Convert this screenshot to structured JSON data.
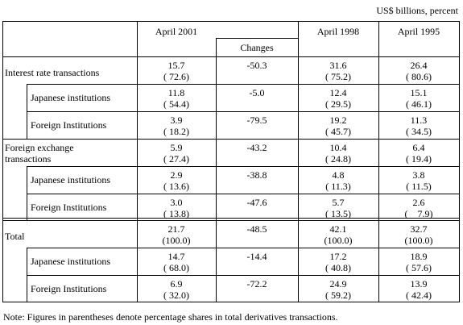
{
  "unit": "US$ billions, percent",
  "columns": {
    "april_2001": "April 2001",
    "changes": "Changes",
    "april_1998": "April 1998",
    "april_1995": "April 1995"
  },
  "sections": [
    {
      "row": {
        "label": "Interest rate transactions",
        "v2001": "15.7",
        "s2001": "( 72.6)",
        "change": "-50.3",
        "v1998": "31.6",
        "s1998": "( 75.2)",
        "v1995": "26.4",
        "s1995": "( 80.6)"
      },
      "subrows": [
        {
          "label": "Japanese institutions",
          "v2001": "11.8",
          "s2001": "( 54.4)",
          "change": "-5.0",
          "v1998": "12.4",
          "s1998": "( 29.5)",
          "v1995": "15.1",
          "s1995": "( 46.1)"
        },
        {
          "label": "Foreign Institutions",
          "v2001": "3.9",
          "s2001": "( 18.2)",
          "change": "-79.5",
          "v1998": "19.2",
          "s1998": "( 45.7)",
          "v1995": "11.3",
          "s1995": "( 34.5)"
        }
      ]
    },
    {
      "row": {
        "label": "Foreign exchange transactions",
        "v2001": "5.9",
        "s2001": "( 27.4)",
        "change": "-43.2",
        "v1998": "10.4",
        "s1998": "( 24.8)",
        "v1995": "6.4",
        "s1995": "( 19.4)"
      },
      "subrows": [
        {
          "label": "Japanese institutions",
          "v2001": "2.9",
          "s2001": "( 13.6)",
          "change": "-38.8",
          "v1998": "4.8",
          "s1998": "( 11.3)",
          "v1995": "3.8",
          "s1995": "( 11.5)"
        },
        {
          "label": "Foreign Institutions",
          "v2001": "3.0",
          "s2001": "( 13.8)",
          "change": "-47.6",
          "v1998": "5.7",
          "s1998": "( 13.5)",
          "v1995": "2.6",
          "s1995": "(    7.9)"
        }
      ]
    },
    {
      "row": {
        "label": "Total",
        "v2001": "21.7",
        "s2001": "(100.0)",
        "change": "-48.5",
        "v1998": "42.1",
        "s1998": "(100.0)",
        "v1995": "32.7",
        "s1995": "(100.0)"
      },
      "subrows": [
        {
          "label": "Japanese institutions",
          "v2001": "14.7",
          "s2001": "( 68.0)",
          "change": "-14.4",
          "v1998": "17.2",
          "s1998": "( 40.8)",
          "v1995": "18.9",
          "s1995": "( 57.6)"
        },
        {
          "label": "Foreign Institutions",
          "v2001": "6.9",
          "s2001": "( 32.0)",
          "change": "-72.2",
          "v1998": "24.9",
          "s1998": "( 59.2)",
          "v1995": "13.9",
          "s1995": "( 42.4)"
        }
      ]
    }
  ],
  "note": "Note: Figures in parentheses denote percentage shares in total derivatives transactions."
}
